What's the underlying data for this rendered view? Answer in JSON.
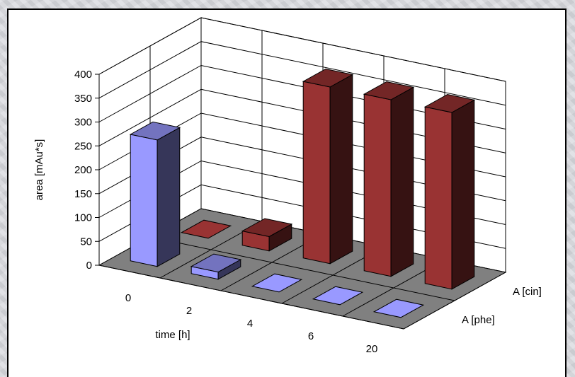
{
  "chart_data": {
    "type": "bar",
    "variant": "3d-column",
    "categories": [
      "0",
      "2",
      "4",
      "6",
      "20"
    ],
    "series": [
      {
        "name": "A [phe]",
        "values": [
          265,
          15,
          0,
          0,
          0
        ],
        "color": "#9999ff"
      },
      {
        "name": "A [cin]",
        "values": [
          0,
          30,
          370,
          370,
          370
        ],
        "color": "#993333"
      }
    ],
    "xlabel": "time [h]",
    "ylabel": "area [mAu*s]",
    "ylim": [
      0,
      400
    ],
    "yticks": [
      "0",
      "50",
      "100",
      "150",
      "200",
      "250",
      "300",
      "350",
      "400"
    ],
    "grid": true,
    "floor_color": "#808080"
  }
}
